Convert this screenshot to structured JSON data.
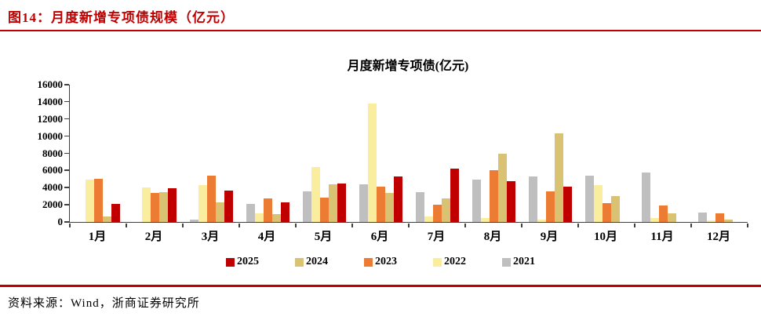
{
  "figure": {
    "caption": "图14：月度新增专项债规模（亿元）",
    "source": "资料来源：Wind，浙商证券研究所",
    "accent_color": "#c00000"
  },
  "chart_data": {
    "type": "bar",
    "title": "月度新增专项债(亿元)",
    "categories": [
      "1月",
      "2月",
      "3月",
      "4月",
      "5月",
      "6月",
      "7月",
      "8月",
      "9月",
      "10月",
      "11月",
      "12月"
    ],
    "series": [
      {
        "name": "2021",
        "color": "#bfbfbf",
        "values": [
          0,
          0,
          300,
          2100,
          3600,
          4400,
          3500,
          4900,
          5300,
          5400,
          5800,
          1100
        ]
      },
      {
        "name": "2022",
        "color": "#faee9e",
        "values": [
          4900,
          4000,
          4300,
          1050,
          6400,
          13800,
          600,
          500,
          300,
          4300,
          500,
          200
        ]
      },
      {
        "name": "2023",
        "color": "#ec7c34",
        "values": [
          5000,
          3400,
          5400,
          2700,
          2800,
          4100,
          2000,
          6000,
          3600,
          2200,
          1900,
          1000
        ]
      },
      {
        "name": "2024",
        "color": "#d9c372",
        "values": [
          600,
          3500,
          2300,
          900,
          4400,
          3400,
          2700,
          8000,
          10300,
          3000,
          1000,
          300
        ]
      },
      {
        "name": "2025",
        "color": "#c00000",
        "values": [
          2100,
          3900,
          3700,
          2300,
          4500,
          5300,
          6200,
          4800,
          4100,
          null,
          null,
          null
        ]
      }
    ],
    "legend_order": [
      "2025",
      "2024",
      "2023",
      "2022",
      "2021"
    ],
    "ylim": [
      0,
      16000
    ],
    "ytick_step": 2000,
    "grid": false,
    "legend_position": "bottom"
  }
}
